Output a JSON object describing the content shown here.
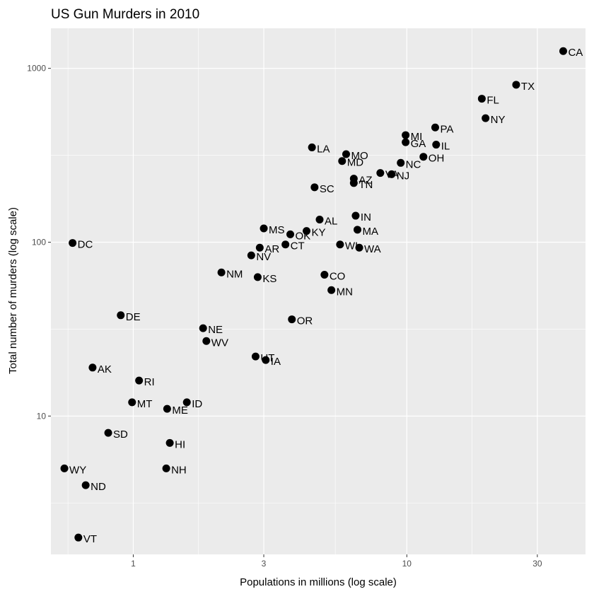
{
  "chart_data": {
    "type": "scatter",
    "title": "US Gun Murders in 2010",
    "xlabel": "Populations in millions (log scale)",
    "ylabel": "Total number of murders (log scale)",
    "x_scale": "log10",
    "y_scale": "log10",
    "xlim": [
      0.5,
      45
    ],
    "ylim": [
      1.6,
      1700
    ],
    "x_ticks": [
      1,
      3,
      10,
      30
    ],
    "x_tick_labels": [
      "1",
      "3",
      "10",
      "30"
    ],
    "y_ticks": [
      10,
      100,
      1000
    ],
    "y_tick_labels": [
      "10",
      "100",
      "1000"
    ],
    "grid": true,
    "legend": "none",
    "colors": {
      "panel": "#ebebeb",
      "grid": "#ffffff",
      "point": "#000000"
    },
    "points": [
      {
        "abb": "CA",
        "x": 37.3,
        "y": 1257
      },
      {
        "abb": "TX",
        "x": 25.1,
        "y": 805
      },
      {
        "abb": "FL",
        "x": 18.8,
        "y": 669
      },
      {
        "abb": "NY",
        "x": 19.4,
        "y": 517
      },
      {
        "abb": "PA",
        "x": 12.7,
        "y": 457
      },
      {
        "abb": "MI",
        "x": 9.9,
        "y": 413
      },
      {
        "abb": "GA",
        "x": 9.9,
        "y": 376
      },
      {
        "abb": "IL",
        "x": 12.8,
        "y": 364
      },
      {
        "abb": "LA",
        "x": 4.5,
        "y": 351
      },
      {
        "abb": "MO",
        "x": 6.0,
        "y": 321
      },
      {
        "abb": "OH",
        "x": 11.5,
        "y": 310
      },
      {
        "abb": "MD",
        "x": 5.8,
        "y": 293
      },
      {
        "abb": "NC",
        "x": 9.5,
        "y": 286
      },
      {
        "abb": "VA",
        "x": 8.0,
        "y": 250
      },
      {
        "abb": "NJ",
        "x": 8.8,
        "y": 246
      },
      {
        "abb": "AZ",
        "x": 6.4,
        "y": 232
      },
      {
        "abb": "TN",
        "x": 6.4,
        "y": 219
      },
      {
        "abb": "SC",
        "x": 4.6,
        "y": 207
      },
      {
        "abb": "IN",
        "x": 6.5,
        "y": 142
      },
      {
        "abb": "AL",
        "x": 4.8,
        "y": 135
      },
      {
        "abb": "MA",
        "x": 6.6,
        "y": 118
      },
      {
        "abb": "MS",
        "x": 3.0,
        "y": 120
      },
      {
        "abb": "KY",
        "x": 4.3,
        "y": 116
      },
      {
        "abb": "OK",
        "x": 3.75,
        "y": 111
      },
      {
        "abb": "DC",
        "x": 0.6,
        "y": 99
      },
      {
        "abb": "CT",
        "x": 3.6,
        "y": 97
      },
      {
        "abb": "WI",
        "x": 5.7,
        "y": 97
      },
      {
        "abb": "AR",
        "x": 2.9,
        "y": 93
      },
      {
        "abb": "WA",
        "x": 6.7,
        "y": 93
      },
      {
        "abb": "NV",
        "x": 2.7,
        "y": 84
      },
      {
        "abb": "NM",
        "x": 2.1,
        "y": 67
      },
      {
        "abb": "CO",
        "x": 5.0,
        "y": 65
      },
      {
        "abb": "KS",
        "x": 2.85,
        "y": 63
      },
      {
        "abb": "MN",
        "x": 5.3,
        "y": 53
      },
      {
        "abb": "DE",
        "x": 0.9,
        "y": 38
      },
      {
        "abb": "OR",
        "x": 3.8,
        "y": 36
      },
      {
        "abb": "NE",
        "x": 1.8,
        "y": 32
      },
      {
        "abb": "WV",
        "x": 1.85,
        "y": 27
      },
      {
        "abb": "UT",
        "x": 2.8,
        "y": 22
      },
      {
        "abb": "IA",
        "x": 3.05,
        "y": 21
      },
      {
        "abb": "AK",
        "x": 0.71,
        "y": 19
      },
      {
        "abb": "RI",
        "x": 1.05,
        "y": 16
      },
      {
        "abb": "MT",
        "x": 0.99,
        "y": 12
      },
      {
        "abb": "ID",
        "x": 1.57,
        "y": 12
      },
      {
        "abb": "ME",
        "x": 1.33,
        "y": 11
      },
      {
        "abb": "SD",
        "x": 0.81,
        "y": 8
      },
      {
        "abb": "HI",
        "x": 1.36,
        "y": 7
      },
      {
        "abb": "WY",
        "x": 0.56,
        "y": 5
      },
      {
        "abb": "NH",
        "x": 1.32,
        "y": 5
      },
      {
        "abb": "ND",
        "x": 0.67,
        "y": 4
      },
      {
        "abb": "VT",
        "x": 0.63,
        "y": 2
      }
    ]
  }
}
